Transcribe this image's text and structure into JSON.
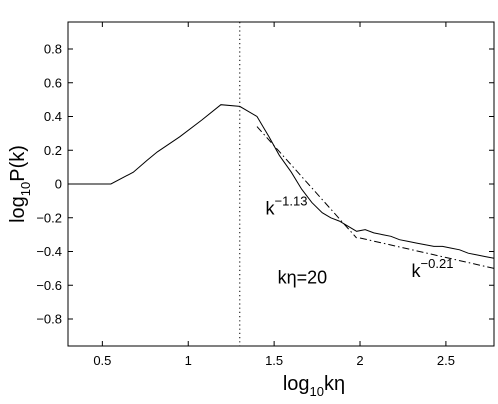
{
  "chart_data": {
    "type": "line",
    "title": "",
    "xlabel": {
      "base": "log",
      "sub": "10",
      "rest": "kη"
    },
    "ylabel": {
      "base": "log",
      "sub": "10",
      "rest": "P(k)"
    },
    "xlim": [
      0.3,
      2.78
    ],
    "ylim": [
      -0.96,
      0.96
    ],
    "xticks": [
      0.5,
      1,
      1.5,
      2,
      2.5
    ],
    "xtick_labels": [
      "0.5",
      "1",
      "1.5",
      "2",
      "2.5"
    ],
    "yticks": [
      0.8,
      0.6,
      0.4,
      0.2,
      0,
      -0.2,
      -0.4,
      -0.6,
      -0.8
    ],
    "ytick_labels": [
      "0.8",
      "0.6",
      "0.4",
      "0.2",
      "0",
      "−0.2",
      "−0.4",
      "−0.6",
      "−0.8"
    ],
    "grid": false,
    "legend": "none",
    "series": [
      {
        "style": "solid",
        "x": [
          0.3,
          0.55,
          0.68,
          0.76,
          0.82,
          0.95,
          1.08,
          1.19,
          1.3,
          1.4,
          1.47,
          1.53,
          1.6,
          1.66,
          1.72,
          1.78,
          1.83,
          1.88,
          1.93,
          1.98,
          2.03,
          2.08,
          2.13,
          2.18,
          2.23,
          2.28,
          2.33,
          2.38,
          2.43,
          2.48,
          2.53,
          2.58,
          2.63,
          2.68,
          2.73,
          2.78
        ],
        "y": [
          0.0,
          0.0,
          0.07,
          0.14,
          0.19,
          0.28,
          0.38,
          0.47,
          0.46,
          0.4,
          0.28,
          0.17,
          0.07,
          -0.03,
          -0.11,
          -0.17,
          -0.2,
          -0.22,
          -0.25,
          -0.28,
          -0.27,
          -0.29,
          -0.3,
          -0.31,
          -0.33,
          -0.34,
          -0.35,
          -0.36,
          -0.37,
          -0.37,
          -0.38,
          -0.39,
          -0.41,
          -0.42,
          -0.43,
          -0.44
        ]
      },
      {
        "style": "dash-dot",
        "x": [
          1.4,
          1.98
        ],
        "y": [
          0.34,
          -0.32
        ]
      },
      {
        "style": "dash-dot",
        "x": [
          2.0,
          2.78
        ],
        "y": [
          -0.32,
          -0.5
        ]
      }
    ],
    "vline": {
      "x": 1.3,
      "style": "dotted"
    },
    "annotations": [
      {
        "base": "k",
        "sup": "−1.13",
        "x": 1.45,
        "y": -0.18
      },
      {
        "base": "k",
        "sup": "−0.21",
        "x": 2.3,
        "y": -0.55
      },
      {
        "text": "kη=20",
        "x": 1.52,
        "y": -0.59
      }
    ],
    "colors": {
      "line": "#000000",
      "frame": "#000000"
    }
  }
}
